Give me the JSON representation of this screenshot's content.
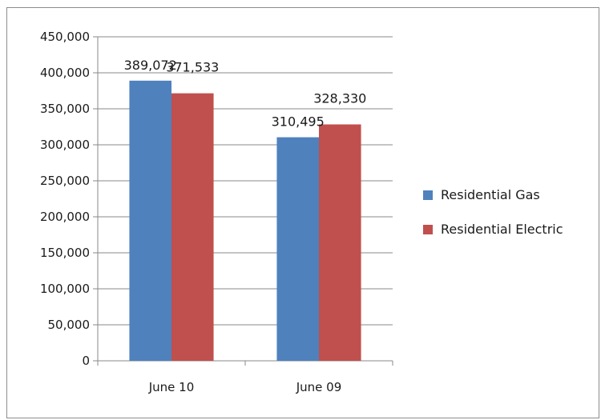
{
  "chart_data": {
    "type": "bar",
    "categories": [
      "June 10",
      "June 09"
    ],
    "series": [
      {
        "name": "Residential Gas",
        "color": "#4f81bd",
        "values": [
          389072,
          310495
        ]
      },
      {
        "name": "Residential Electric",
        "color": "#c0504d",
        "values": [
          371533,
          328330
        ]
      }
    ],
    "data_labels": [
      [
        "389,072",
        "310,495"
      ],
      [
        "371,533",
        "328,330"
      ]
    ],
    "ylim": [
      0,
      450000
    ],
    "y_ticks": [
      0,
      50000,
      100000,
      150000,
      200000,
      250000,
      300000,
      350000,
      400000,
      450000
    ],
    "y_tick_labels": [
      "0",
      "50,000",
      "100,000",
      "150,000",
      "200,000",
      "250,000",
      "300,000",
      "350,000",
      "400,000",
      "450,000"
    ],
    "grid": true,
    "legend_position": "right",
    "title": "",
    "xlabel": "",
    "ylabel": ""
  }
}
